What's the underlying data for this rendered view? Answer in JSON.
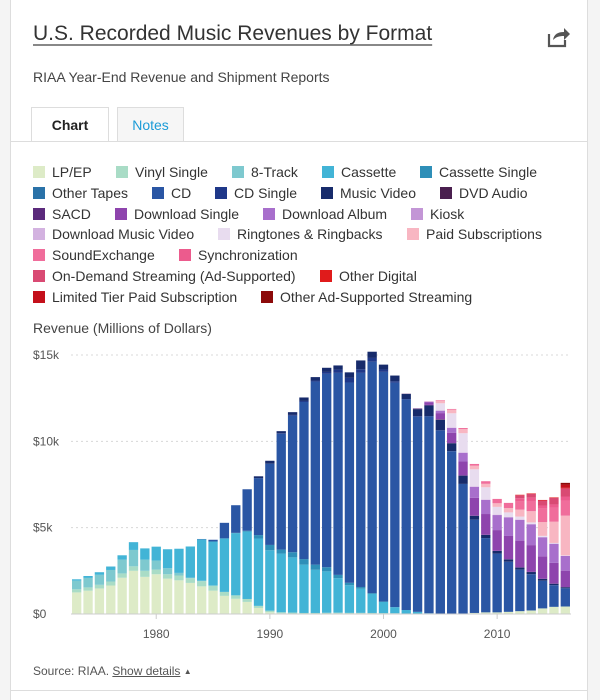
{
  "header": {
    "title": "U.S. Recorded Music Revenues by Format",
    "subtitle": "RIAA Year-End Revenue and Shipment Reports",
    "share_icon": "share-icon"
  },
  "tabs": [
    {
      "label": "Chart",
      "active": true
    },
    {
      "label": "Notes",
      "active": false
    }
  ],
  "footer": {
    "source_prefix": "Source: RIAA.",
    "details_link": "Show details",
    "details_icon": "caret-up-icon"
  },
  "chart_data": {
    "type": "bar",
    "stacked": true,
    "ylabel": "Revenue (Millions of Dollars)",
    "yticks": [
      "$0",
      "$5k",
      "$10k",
      "$15k"
    ],
    "ylim": [
      0,
      15000
    ],
    "xlim": [
      1972.5,
      2016.5
    ],
    "xticks": [
      "1980",
      "1990",
      "2000",
      "2010"
    ],
    "grid": true,
    "legend_position": "top",
    "x": [
      1973,
      1974,
      1975,
      1976,
      1977,
      1978,
      1979,
      1980,
      1981,
      1982,
      1983,
      1984,
      1985,
      1986,
      1987,
      1988,
      1989,
      1990,
      1991,
      1992,
      1993,
      1994,
      1995,
      1996,
      1997,
      1998,
      1999,
      2000,
      2001,
      2002,
      2003,
      2004,
      2005,
      2006,
      2007,
      2008,
      2009,
      2010,
      2011,
      2012,
      2013,
      2014,
      2015,
      2016
    ],
    "series": [
      {
        "name": "LP/EP",
        "color": "#ddebc7",
        "values": [
          1250,
          1350,
          1480,
          1650,
          2100,
          2500,
          2150,
          2300,
          2050,
          1950,
          1800,
          1600,
          1350,
          1050,
          880,
          700,
          350,
          100,
          40,
          20,
          10,
          10,
          25,
          35,
          30,
          35,
          30,
          28,
          25,
          20,
          20,
          20,
          15,
          15,
          25,
          55,
          90,
          90,
          120,
          160,
          200,
          320,
          410,
          430
        ]
      },
      {
        "name": "Vinyl Single",
        "color": "#a9dcc6",
        "values": [
          180,
          190,
          210,
          230,
          250,
          260,
          350,
          270,
          250,
          280,
          270,
          300,
          290,
          230,
          200,
          170,
          120,
          90,
          60,
          60,
          50,
          50,
          45,
          40,
          35,
          30,
          30,
          25,
          20,
          10,
          5,
          5,
          5,
          5,
          5,
          5,
          5,
          5,
          5,
          5,
          5,
          5,
          5,
          5
        ]
      },
      {
        "name": "8-Track",
        "color": "#7ec9cf",
        "values": [
          500,
          550,
          580,
          670,
          800,
          950,
          650,
          530,
          350,
          150,
          40,
          25,
          10,
          0,
          0,
          0,
          0,
          0,
          0,
          0,
          0,
          0,
          0,
          0,
          0,
          0,
          0,
          0,
          0,
          0,
          0,
          0,
          0,
          0,
          0,
          0,
          0,
          0,
          0,
          0,
          0,
          0,
          0,
          0
        ]
      },
      {
        "name": "Cassette",
        "color": "#42b4d6",
        "values": [
          80,
          110,
          150,
          200,
          250,
          450,
          650,
          800,
          1100,
          1400,
          1800,
          2400,
          2550,
          3100,
          3600,
          3900,
          3900,
          3500,
          3400,
          3200,
          2800,
          2500,
          2400,
          2000,
          1600,
          1400,
          1100,
          650,
          350,
          200,
          100,
          20,
          10,
          5,
          0,
          0,
          0,
          0,
          0,
          0,
          0,
          0,
          0,
          0
        ]
      },
      {
        "name": "Cassette Single",
        "color": "#2e8fb8",
        "values": [
          0,
          0,
          0,
          0,
          0,
          0,
          0,
          0,
          0,
          0,
          0,
          0,
          0,
          0,
          20,
          50,
          200,
          310,
          230,
          300,
          320,
          300,
          240,
          190,
          140,
          100,
          50,
          20,
          5,
          0,
          0,
          0,
          0,
          0,
          0,
          0,
          0,
          0,
          0,
          0,
          0,
          0,
          0,
          0
        ]
      },
      {
        "name": "Other Tapes",
        "color": "#2a72a8",
        "values": [
          0,
          0,
          0,
          0,
          0,
          0,
          0,
          0,
          0,
          0,
          0,
          0,
          0,
          0,
          0,
          0,
          0,
          0,
          0,
          0,
          0,
          0,
          0,
          0,
          0,
          0,
          0,
          0,
          0,
          0,
          0,
          0,
          0,
          0,
          0,
          0,
          0,
          0,
          0,
          0,
          0,
          0,
          0,
          0
        ]
      },
      {
        "name": "CD",
        "color": "#2a56a4",
        "values": [
          0,
          0,
          0,
          0,
          0,
          0,
          0,
          0,
          0,
          0,
          0,
          20,
          100,
          900,
          1600,
          2400,
          3300,
          4700,
          6700,
          7900,
          9100,
          10600,
          11200,
          11700,
          11600,
          12400,
          13400,
          13300,
          13000,
          12200,
          11300,
          11400,
          10600,
          9400,
          7500,
          5400,
          4300,
          3400,
          2900,
          2400,
          2100,
          1600,
          1250,
          1050
        ]
      },
      {
        "name": "CD Single",
        "color": "#1f3889",
        "values": [
          0,
          0,
          0,
          0,
          0,
          0,
          0,
          0,
          0,
          0,
          0,
          0,
          0,
          0,
          0,
          5,
          5,
          5,
          40,
          50,
          60,
          60,
          110,
          190,
          270,
          210,
          220,
          140,
          80,
          20,
          40,
          20,
          15,
          10,
          5,
          5,
          5,
          5,
          5,
          5,
          5,
          5,
          5,
          5
        ]
      },
      {
        "name": "Music Video",
        "color": "#172b6b",
        "values": [
          0,
          0,
          0,
          0,
          0,
          0,
          0,
          0,
          0,
          0,
          0,
          0,
          0,
          0,
          0,
          0,
          100,
          170,
          120,
          160,
          200,
          200,
          240,
          240,
          320,
          510,
          360,
          280,
          330,
          290,
          400,
          610,
          600,
          450,
          480,
          220,
          180,
          150,
          130,
          120,
          120,
          100,
          80,
          60
        ]
      },
      {
        "name": "DVD Audio",
        "color": "#4a1f4f",
        "values": [
          0,
          0,
          0,
          0,
          0,
          0,
          0,
          0,
          0,
          0,
          0,
          0,
          0,
          0,
          0,
          0,
          0,
          0,
          0,
          0,
          0,
          0,
          0,
          0,
          0,
          0,
          0,
          0,
          0,
          10,
          10,
          10,
          20,
          10,
          5,
          5,
          5,
          5,
          5,
          5,
          5,
          5,
          5,
          5
        ]
      },
      {
        "name": "SACD",
        "color": "#5b2a7c",
        "values": [
          0,
          0,
          0,
          0,
          0,
          0,
          0,
          0,
          0,
          0,
          0,
          0,
          0,
          0,
          0,
          0,
          0,
          0,
          0,
          0,
          0,
          0,
          0,
          0,
          0,
          0,
          0,
          0,
          0,
          10,
          30,
          25,
          10,
          5,
          5,
          5,
          5,
          5,
          5,
          5,
          5,
          5,
          5,
          5
        ]
      },
      {
        "name": "Download Single",
        "color": "#8e44ad",
        "values": [
          0,
          0,
          0,
          0,
          0,
          0,
          0,
          0,
          0,
          0,
          0,
          0,
          0,
          0,
          0,
          0,
          0,
          0,
          0,
          0,
          0,
          0,
          0,
          0,
          0,
          0,
          0,
          0,
          0,
          0,
          0,
          140,
          360,
          600,
          810,
          1030,
          1200,
          1200,
          1350,
          1550,
          1550,
          1300,
          1200,
          950
        ]
      },
      {
        "name": "Download Album",
        "color": "#a86fcc",
        "values": [
          0,
          0,
          0,
          0,
          0,
          0,
          0,
          0,
          0,
          0,
          0,
          0,
          0,
          0,
          0,
          0,
          0,
          0,
          0,
          0,
          0,
          0,
          0,
          0,
          0,
          0,
          0,
          0,
          0,
          0,
          0,
          50,
          140,
          280,
          500,
          640,
          820,
          870,
          1070,
          1200,
          1200,
          1100,
          1100,
          850
        ]
      },
      {
        "name": "Kiosk",
        "color": "#c396d6",
        "values": [
          0,
          0,
          0,
          0,
          0,
          0,
          0,
          0,
          0,
          0,
          0,
          0,
          0,
          0,
          0,
          0,
          0,
          0,
          0,
          0,
          0,
          0,
          0,
          0,
          0,
          0,
          0,
          0,
          0,
          0,
          0,
          0,
          5,
          5,
          5,
          5,
          5,
          5,
          5,
          5,
          5,
          5,
          5,
          5
        ]
      },
      {
        "name": "Download Music Video",
        "color": "#d3b2e0",
        "values": [
          0,
          0,
          0,
          0,
          0,
          0,
          0,
          0,
          0,
          0,
          0,
          0,
          0,
          0,
          0,
          0,
          0,
          0,
          0,
          0,
          0,
          0,
          0,
          0,
          0,
          0,
          0,
          0,
          0,
          0,
          0,
          0,
          5,
          20,
          30,
          30,
          25,
          20,
          20,
          20,
          20,
          20,
          20,
          10
        ]
      },
      {
        "name": "Ringtones & Ringbacks",
        "color": "#e8dcef",
        "values": [
          0,
          0,
          0,
          0,
          0,
          0,
          0,
          0,
          0,
          0,
          0,
          0,
          0,
          0,
          0,
          0,
          0,
          0,
          0,
          0,
          0,
          0,
          0,
          0,
          0,
          0,
          0,
          0,
          0,
          0,
          0,
          0,
          420,
          820,
          1100,
          980,
          700,
          450,
          270,
          170,
          90,
          60,
          30,
          20
        ]
      },
      {
        "name": "Paid Subscriptions",
        "color": "#f8b6c2",
        "values": [
          0,
          0,
          0,
          0,
          0,
          0,
          0,
          0,
          0,
          0,
          0,
          0,
          0,
          0,
          0,
          0,
          0,
          0,
          0,
          0,
          0,
          0,
          0,
          0,
          0,
          0,
          0,
          0,
          0,
          0,
          0,
          0,
          150,
          210,
          240,
          210,
          200,
          210,
          250,
          400,
          650,
          800,
          1230,
          2300
        ]
      },
      {
        "name": "SoundExchange",
        "color": "#f06d9b",
        "values": [
          0,
          0,
          0,
          0,
          0,
          0,
          0,
          0,
          0,
          0,
          0,
          0,
          0,
          0,
          0,
          0,
          0,
          0,
          0,
          0,
          0,
          0,
          0,
          0,
          0,
          0,
          0,
          0,
          0,
          0,
          0,
          10,
          30,
          40,
          60,
          100,
          150,
          250,
          300,
          460,
          590,
          770,
          800,
          880
        ]
      },
      {
        "name": "Synchronization",
        "color": "#ec5b8d",
        "values": [
          0,
          0,
          0,
          0,
          0,
          0,
          0,
          0,
          0,
          0,
          0,
          0,
          0,
          0,
          0,
          0,
          0,
          0,
          0,
          0,
          0,
          0,
          0,
          0,
          0,
          0,
          0,
          0,
          0,
          0,
          0,
          0,
          0,
          0,
          0,
          0,
          0,
          0,
          0,
          200,
          190,
          190,
          200,
          230
        ]
      },
      {
        "name": "On-Demand Streaming (Ad-Supported)",
        "color": "#d94a73",
        "values": [
          0,
          0,
          0,
          0,
          0,
          0,
          0,
          0,
          0,
          0,
          0,
          0,
          0,
          0,
          0,
          0,
          0,
          0,
          0,
          0,
          0,
          0,
          0,
          0,
          0,
          0,
          0,
          0,
          0,
          0,
          0,
          0,
          0,
          0,
          0,
          0,
          0,
          0,
          0,
          170,
          220,
          290,
          380,
          470
        ]
      },
      {
        "name": "Other Digital",
        "color": "#e01b1b",
        "values": [
          0,
          0,
          0,
          0,
          0,
          0,
          0,
          0,
          0,
          0,
          0,
          0,
          0,
          0,
          0,
          0,
          0,
          0,
          0,
          0,
          0,
          0,
          0,
          0,
          0,
          0,
          0,
          0,
          0,
          0,
          0,
          0,
          0,
          0,
          0,
          0,
          0,
          0,
          0,
          30,
          30,
          30,
          30,
          30
        ]
      },
      {
        "name": "Limited Tier Paid Subscription",
        "color": "#c4101b",
        "values": [
          0,
          0,
          0,
          0,
          0,
          0,
          0,
          0,
          0,
          0,
          0,
          0,
          0,
          0,
          0,
          0,
          0,
          0,
          0,
          0,
          0,
          0,
          0,
          0,
          0,
          0,
          0,
          0,
          0,
          0,
          0,
          0,
          0,
          0,
          0,
          0,
          0,
          0,
          0,
          0,
          0,
          0,
          0,
          190
        ]
      },
      {
        "name": "Other Ad-Supported Streaming",
        "color": "#8c0a0a",
        "values": [
          0,
          0,
          0,
          0,
          0,
          0,
          0,
          0,
          0,
          0,
          0,
          0,
          0,
          0,
          0,
          0,
          0,
          0,
          0,
          0,
          0,
          0,
          0,
          0,
          0,
          0,
          0,
          0,
          0,
          0,
          0,
          0,
          0,
          0,
          0,
          0,
          0,
          0,
          0,
          0,
          0,
          0,
          0,
          100
        ]
      }
    ]
  }
}
